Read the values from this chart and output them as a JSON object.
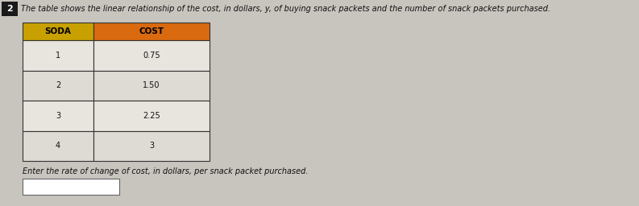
{
  "title_text": "The table shows the linear relationship of the cost, in dollars, y, of buying snack packets and the number of snack packets purchased.",
  "col1_header": "SODA",
  "col2_header": "COST",
  "col1_header_bg": "#C8A000",
  "col2_header_bg": "#D96A10",
  "header_text_color": "#000000",
  "rows": [
    [
      "1",
      "0.75"
    ],
    [
      "2",
      "1.50"
    ],
    [
      "3",
      "2.25"
    ],
    [
      "4",
      "3"
    ]
  ],
  "row_bg_light": "#E8E5DF",
  "row_bg_dark": "#DEDAD4",
  "footer_text": "Enter the rate of change of cost, in dollars, per snack packet purchased.",
  "background_color": "#C8C4BE",
  "question_num": "2",
  "question_num_bg": "#1A1A1A",
  "question_num_text_color": "#ffffff",
  "table_border_color": "#333333",
  "title_fontsize": 7.0,
  "data_fontsize": 7.0,
  "header_fontsize": 7.5
}
